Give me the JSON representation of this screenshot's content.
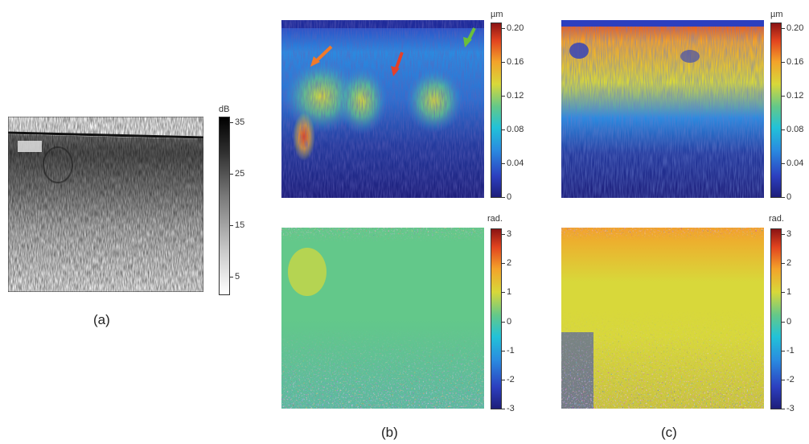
{
  "panel_a": {
    "colorbar": {
      "unit": "dB",
      "ticks": [
        "35",
        "25",
        "15",
        "5"
      ]
    },
    "caption": "(a)"
  },
  "panel_b": {
    "top": {
      "colorbar": {
        "unit": "µm",
        "ticks": [
          "0.20",
          "0.16",
          "0.12",
          "0.08",
          "0.04",
          "0"
        ]
      }
    },
    "bottom": {
      "colorbar": {
        "unit": "rad.",
        "ticks": [
          "3",
          "2",
          "1",
          "0",
          "-1",
          "-2",
          "-3"
        ]
      }
    },
    "caption": "(b)",
    "arrows": [
      {
        "color": "#f07a2a",
        "direction": "down-left"
      },
      {
        "color": "#e4402a",
        "direction": "down-left"
      },
      {
        "color": "#6bbf3a",
        "direction": "down-left"
      }
    ]
  },
  "panel_c": {
    "top": {
      "colorbar": {
        "unit": "µm",
        "ticks": [
          "0.20",
          "0.16",
          "0.12",
          "0.08",
          "0.04",
          "0"
        ]
      }
    },
    "bottom": {
      "colorbar": {
        "unit": "rad.",
        "ticks": [
          "3",
          "2",
          "1",
          "0",
          "-1",
          "-2",
          "-3"
        ]
      }
    },
    "caption": "(c)"
  },
  "colors": {
    "jet": [
      "#1e1e7a",
      "#2c3fbf",
      "#2a8be0",
      "#22c2d8",
      "#63c88a",
      "#d8d83a",
      "#f3a22a",
      "#e2441f",
      "#8b1414"
    ],
    "gray_dark": "#000000",
    "gray_light": "#ffffff"
  }
}
